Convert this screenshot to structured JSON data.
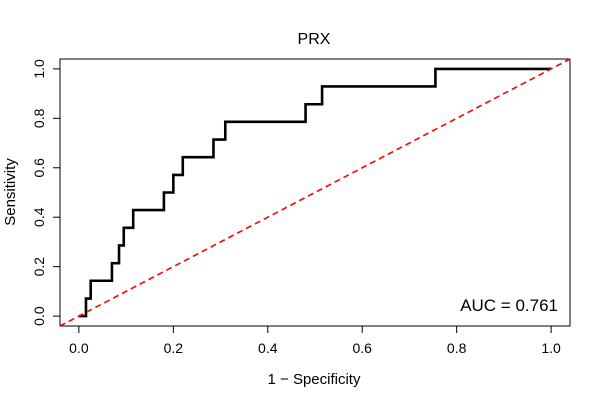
{
  "chart_data": {
    "type": "line",
    "title": "PRX",
    "xlabel": "1 − Specificity",
    "ylabel": "Sensitivity",
    "xlim": [
      -0.04,
      1.04
    ],
    "ylim": [
      -0.04,
      1.04
    ],
    "xticks": [
      {
        "value": 0.0,
        "label": "0.0"
      },
      {
        "value": 0.2,
        "label": "0.2"
      },
      {
        "value": 0.4,
        "label": "0.4"
      },
      {
        "value": 0.6,
        "label": "0.6"
      },
      {
        "value": 0.8,
        "label": "0.8"
      },
      {
        "value": 1.0,
        "label": "1.0"
      }
    ],
    "yticks": [
      {
        "value": 0.0,
        "label": "0.0"
      },
      {
        "value": 0.2,
        "label": "0.2"
      },
      {
        "value": 0.4,
        "label": "0.4"
      },
      {
        "value": 0.6,
        "label": "0.6"
      },
      {
        "value": 0.8,
        "label": "0.8"
      },
      {
        "value": 1.0,
        "label": "1.0"
      }
    ],
    "grid": false,
    "series": [
      {
        "color": "#000000",
        "style": "solid",
        "x": [
          0.0,
          0.0,
          0.015,
          0.015,
          0.025,
          0.025,
          0.07,
          0.07,
          0.085,
          0.085,
          0.095,
          0.095,
          0.115,
          0.115,
          0.18,
          0.18,
          0.2,
          0.2,
          0.22,
          0.22,
          0.285,
          0.285,
          0.31,
          0.31,
          0.48,
          0.48,
          0.515,
          0.515,
          0.755,
          0.755,
          1.0
        ],
        "y": [
          0.0,
          0.0,
          0.0,
          0.071,
          0.071,
          0.143,
          0.143,
          0.214,
          0.214,
          0.286,
          0.286,
          0.357,
          0.357,
          0.429,
          0.429,
          0.5,
          0.5,
          0.571,
          0.571,
          0.643,
          0.643,
          0.714,
          0.714,
          0.786,
          0.786,
          0.857,
          0.857,
          0.929,
          0.929,
          1.0,
          1.0
        ]
      },
      {
        "color": "#ff0000",
        "style": "dashed",
        "x": [
          -0.04,
          1.04
        ],
        "y": [
          -0.04,
          1.04
        ]
      }
    ],
    "annotations": [
      {
        "text": "AUC = 0.761",
        "position": "bottom-right"
      }
    ]
  }
}
